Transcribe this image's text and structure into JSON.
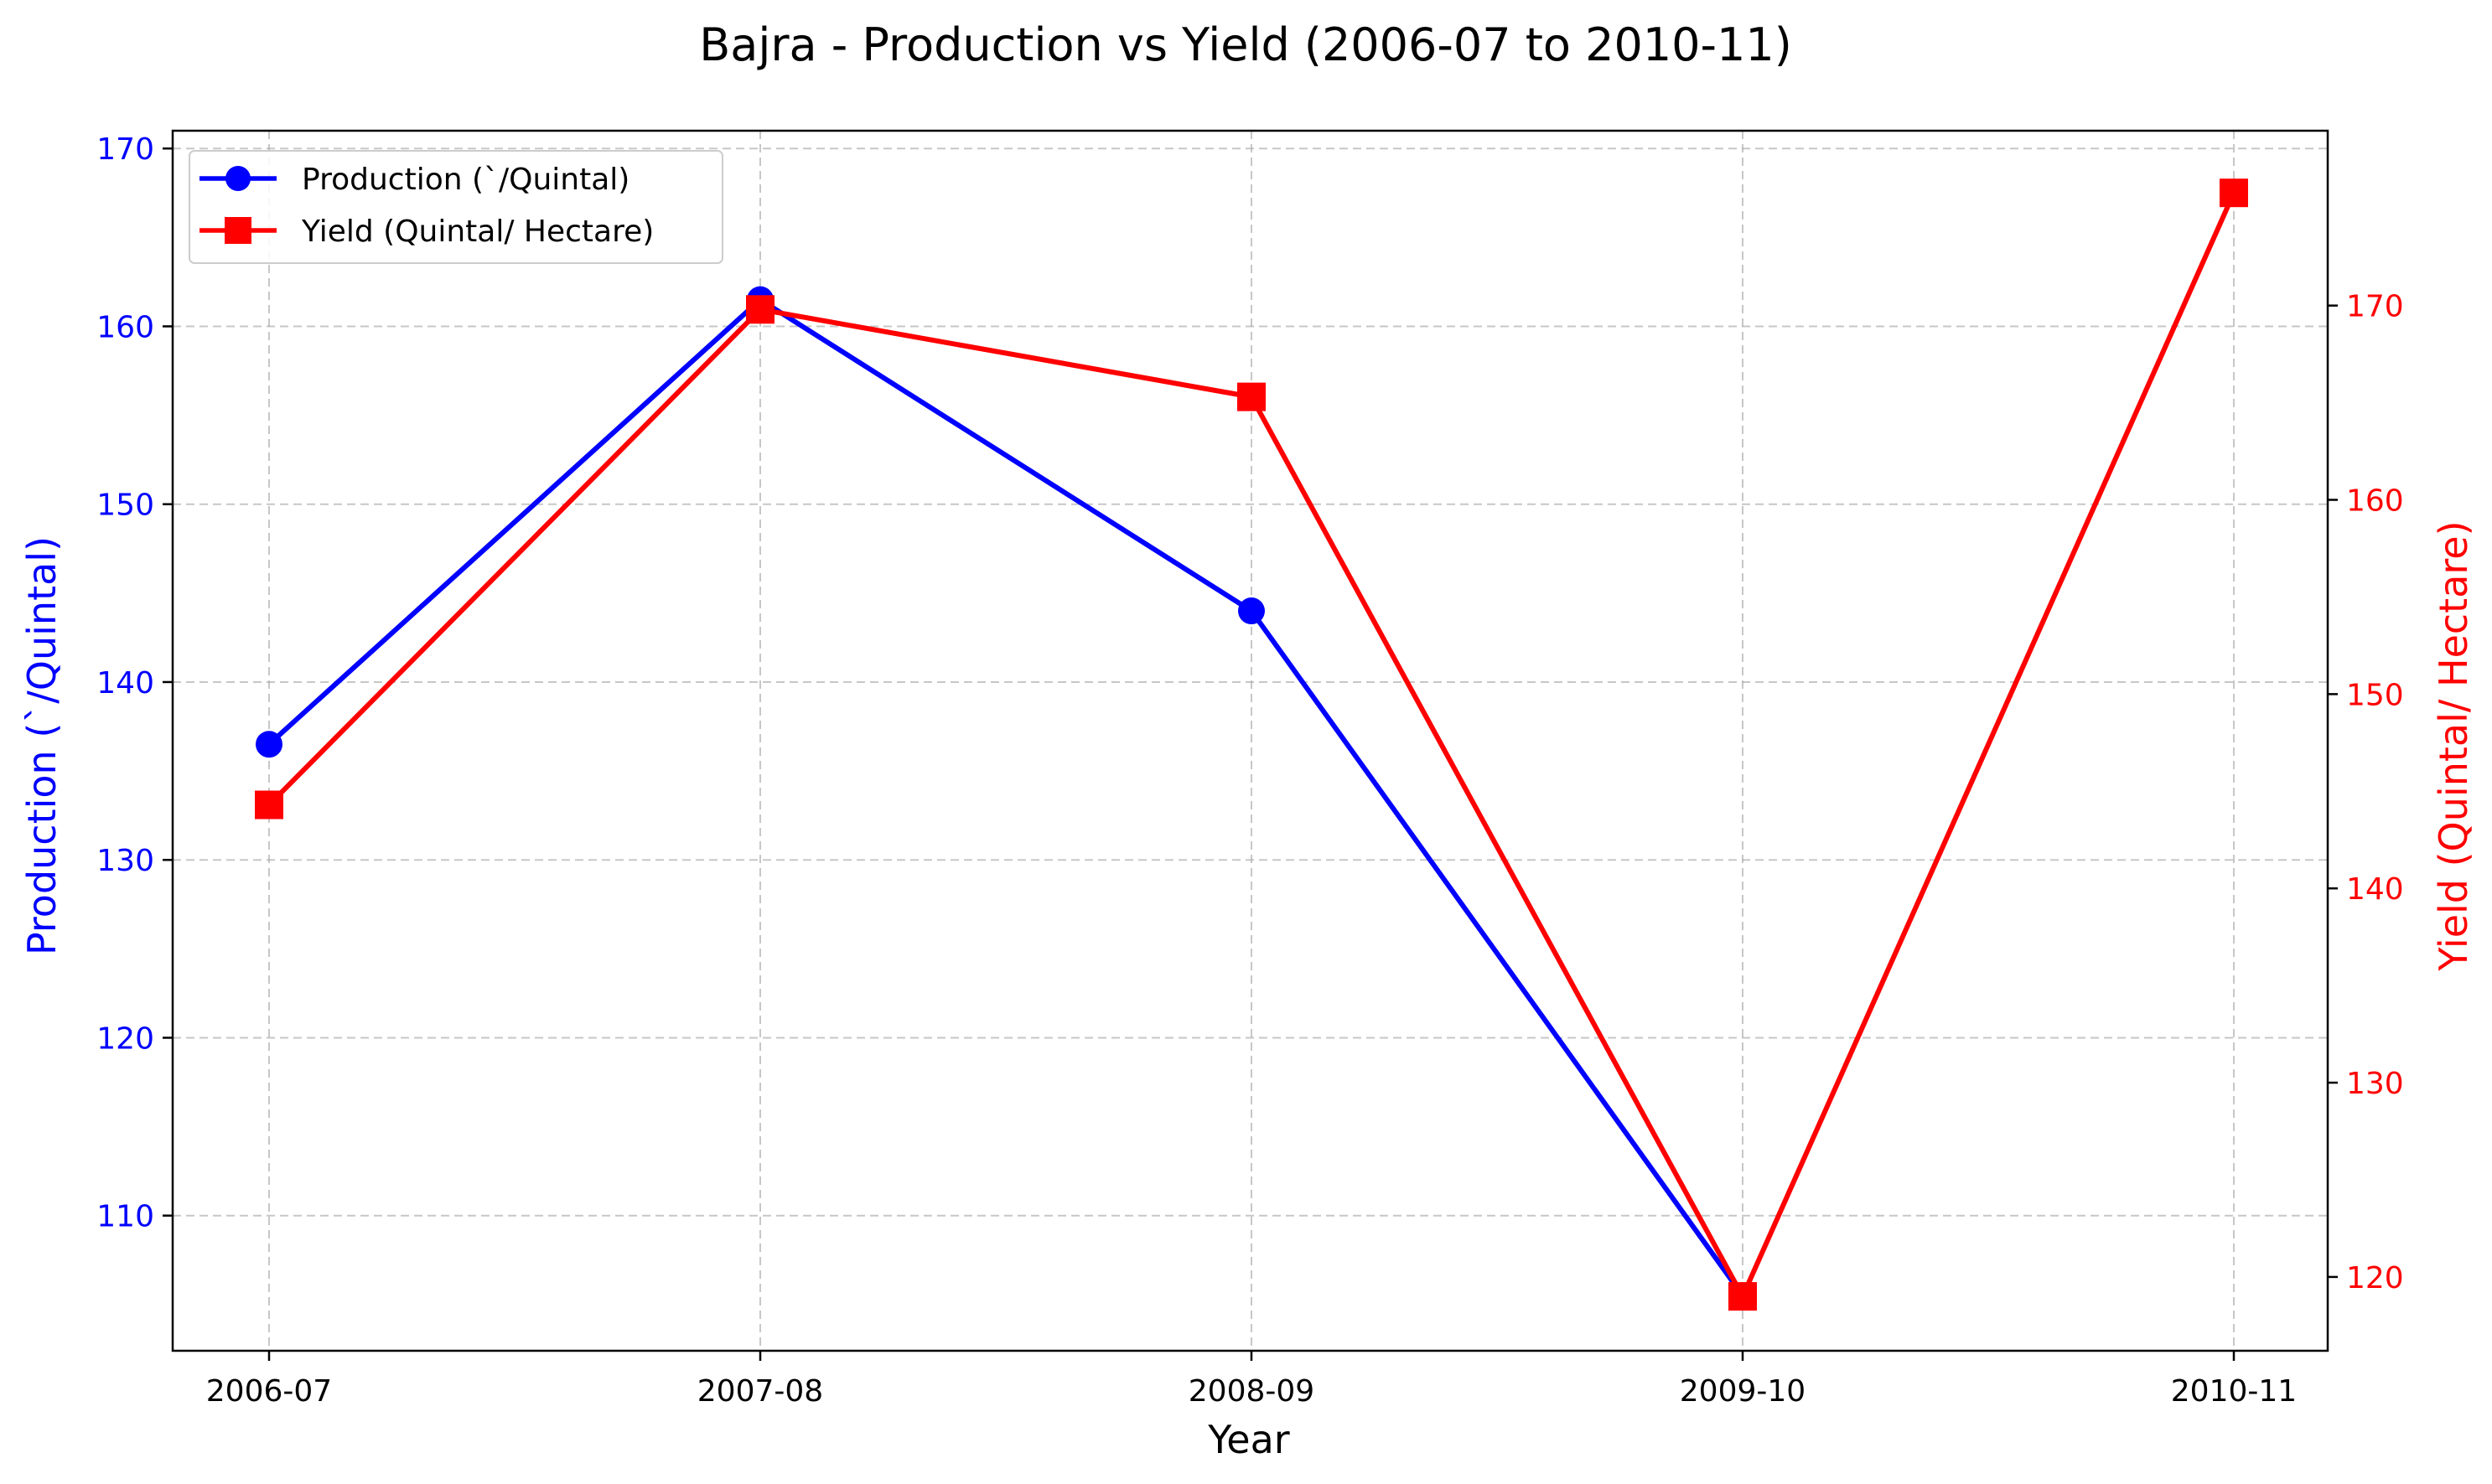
{
  "chart_data": {
    "type": "line",
    "title": "Bajra - Production vs Yield (2006-07 to 2010-11)",
    "xlabel": "Year",
    "categories": [
      "2006-07",
      "2007-08",
      "2008-09",
      "2009-10",
      "2010-11"
    ],
    "y_left": {
      "label": "Production (`/Quintal)",
      "ticks": [
        110,
        120,
        130,
        140,
        150,
        160,
        170
      ],
      "lim": [
        102.4,
        171.0
      ],
      "color": "#0000ff"
    },
    "y_right": {
      "label": "Yield (Quintal/ Hectare)",
      "ticks": [
        120,
        130,
        140,
        150,
        160,
        170
      ],
      "lim": [
        116.2,
        179.0
      ],
      "color": "#ff0000"
    },
    "grid": true,
    "legend_position": "top-left",
    "series": [
      {
        "name": "Production (`/Quintal)",
        "axis": "left",
        "color": "#0000ff",
        "marker": "circle",
        "values": [
          136.5,
          161.5,
          144.0,
          105.5,
          null
        ]
      },
      {
        "name": "Yield (Quintal/ Hectare)",
        "axis": "right",
        "color": "#ff0000",
        "marker": "square",
        "values": [
          144.3,
          169.8,
          165.3,
          119.0,
          175.8
        ]
      }
    ]
  }
}
